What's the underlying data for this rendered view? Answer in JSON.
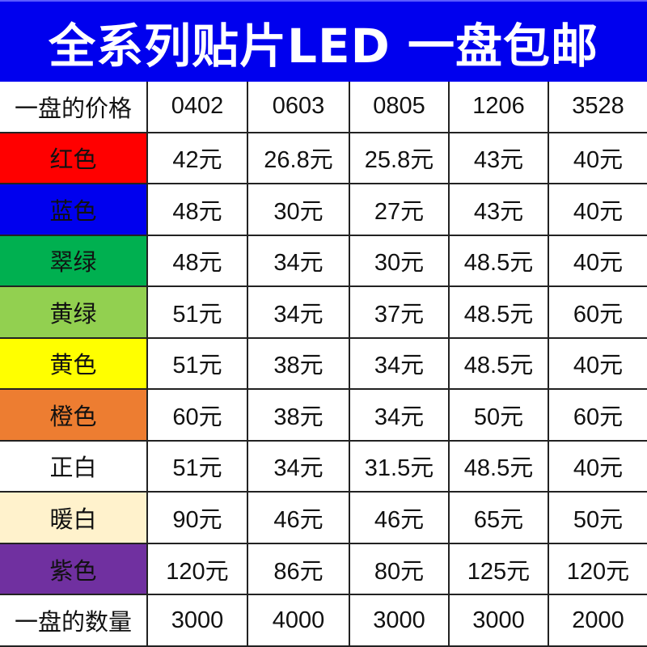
{
  "banner": {
    "title": "全系列贴片LED  一盘包邮",
    "background": "#0000ee",
    "text_color": "#ffffff"
  },
  "table": {
    "header": {
      "label": "一盘的价格",
      "columns": [
        "0402",
        "0603",
        "0805",
        "1206",
        "3528"
      ]
    },
    "rows": [
      {
        "label": "红色",
        "color": "#ff0000",
        "values": [
          "42元",
          "26.8元",
          "25.8元",
          "43元",
          "40元"
        ]
      },
      {
        "label": "蓝色",
        "color": "#0000ee",
        "values": [
          "48元",
          "30元",
          "27元",
          "43元",
          "40元"
        ]
      },
      {
        "label": "翠绿",
        "color": "#00b050",
        "values": [
          "48元",
          "34元",
          "30元",
          "48.5元",
          "40元"
        ]
      },
      {
        "label": "黄绿",
        "color": "#92d050",
        "values": [
          "51元",
          "34元",
          "37元",
          "48.5元",
          "60元"
        ]
      },
      {
        "label": "黄色",
        "color": "#ffff00",
        "values": [
          "51元",
          "38元",
          "34元",
          "48.5元",
          "40元"
        ]
      },
      {
        "label": "橙色",
        "color": "#ed7d31",
        "values": [
          "60元",
          "38元",
          "34元",
          "50元",
          "60元"
        ]
      },
      {
        "label": "正白",
        "color": "#ffffff",
        "values": [
          "51元",
          "34元",
          "31.5元",
          "48.5元",
          "40元"
        ]
      },
      {
        "label": "暖白",
        "color": "#fff2cc",
        "values": [
          "90元",
          "46元",
          "46元",
          "65元",
          "50元"
        ]
      },
      {
        "label": "紫色",
        "color": "#7030a0",
        "values": [
          "120元",
          "86元",
          "80元",
          "125元",
          "120元"
        ]
      }
    ],
    "footer": {
      "label": "一盘的数量",
      "values": [
        "3000",
        "4000",
        "3000",
        "3000",
        "2000"
      ]
    }
  }
}
